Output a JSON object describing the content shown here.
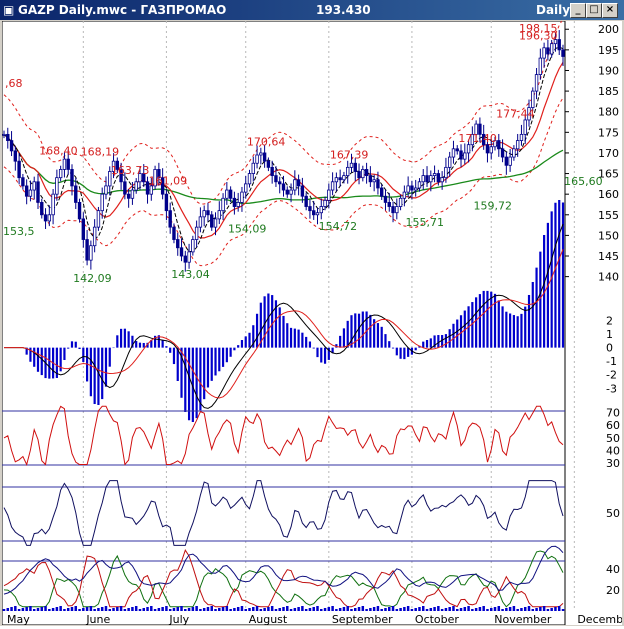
{
  "window": {
    "title": "GAZP Daily.mwc - ГАЗПРОМАО",
    "last_price": "193.430",
    "period": "Daily"
  },
  "colors": {
    "price": "#00008b",
    "ma_red": "#e0201c",
    "ma_green": "#1a8a1a",
    "label_red": "#d42020",
    "label_green": "#1f7a1f",
    "month_line": "#b8b8b8",
    "ref_line": "#3030a0"
  },
  "chart_data": [
    {
      "type": "candlestick",
      "title": "GAZP Daily",
      "ylim": [
        137,
        202
      ],
      "y_ticks": [
        "200",
        "195",
        "190",
        "185",
        "180",
        "175",
        "170",
        "165",
        "160",
        "155",
        "150",
        "145",
        "140"
      ],
      "x_months": [
        "May",
        "June",
        "July",
        "August",
        "September",
        "October",
        "November",
        "December"
      ],
      "left_edge_label": ",68",
      "close_series": [
        174.5,
        173,
        170.5,
        168,
        164,
        162,
        159.5,
        161,
        163,
        158,
        155,
        153.5,
        155,
        160,
        164,
        166,
        168.5,
        166,
        162,
        158,
        154,
        149,
        144,
        147.5,
        152,
        156,
        160,
        162,
        165.5,
        168,
        166,
        163,
        160,
        159,
        161,
        163,
        165,
        163,
        160,
        162,
        166,
        164,
        160,
        156,
        152,
        149,
        147,
        145,
        143.5,
        146,
        149,
        152,
        154.5,
        156,
        155,
        152,
        154,
        156,
        159,
        161,
        159,
        157,
        158,
        160.5,
        162.5,
        165,
        167.5,
        169.5,
        170,
        168,
        166.5,
        164.5,
        163,
        162.5,
        161,
        160,
        161,
        163.5,
        162,
        159.5,
        157,
        156,
        155,
        155.5,
        157,
        158.5,
        161,
        163,
        164,
        163.5,
        164.5,
        166.5,
        167.5,
        165.5,
        164,
        166,
        164.5,
        163,
        163.5,
        161.5,
        159.5,
        158,
        157,
        155.5,
        157,
        159,
        160.5,
        162,
        161,
        161.5,
        163,
        164.5,
        163,
        164.5,
        165,
        163,
        164,
        166.5,
        169,
        171,
        170.5,
        168.5,
        170,
        172,
        174.5,
        177,
        174.5,
        172,
        170,
        171.5,
        173,
        171,
        169,
        167,
        169,
        171,
        173,
        174.5,
        178,
        181,
        185,
        189,
        193,
        195.5,
        194,
        196.5,
        197.5,
        195,
        193.4
      ],
      "high_labels": [
        {
          "v": "168,40",
          "x": 13,
          "y": 168.4
        },
        {
          "v": "168,19",
          "x": 24,
          "y": 168.19
        },
        {
          "v": "163,73",
          "x": 32,
          "y": 163.73
        },
        {
          "v": "161,09",
          "x": 42,
          "y": 161.09
        },
        {
          "v": "170,64",
          "x": 68,
          "y": 170.64
        },
        {
          "v": "167,39",
          "x": 90,
          "y": 167.39
        },
        {
          "v": "171,40",
          "x": 124,
          "y": 171.4
        },
        {
          "v": "177,44",
          "x": 134,
          "y": 177.44
        },
        {
          "v": "196,30",
          "x": 155,
          "y": 196.3
        },
        {
          "v": "198,15",
          "x": 162,
          "y": 198.15
        }
      ],
      "low_labels": [
        {
          "v": "153,5",
          "x": 1,
          "y": 153.5
        },
        {
          "v": "142,09",
          "x": 22,
          "y": 142.09
        },
        {
          "v": "143,04",
          "x": 48,
          "y": 143.04
        },
        {
          "v": "154,09",
          "x": 63,
          "y": 154.09
        },
        {
          "v": "154,72",
          "x": 87,
          "y": 154.72
        },
        {
          "v": "155,71",
          "x": 110,
          "y": 155.71
        },
        {
          "v": "159,72",
          "x": 128,
          "y": 159.72
        },
        {
          "v": "165,60",
          "x": 152,
          "y": 165.6
        }
      ]
    },
    {
      "type": "bar",
      "name": "oscillator",
      "ylim": [
        -3.2,
        3.0
      ],
      "y_ticks": [
        "2",
        "1",
        "0",
        "-1",
        "-2",
        "-3"
      ]
    },
    {
      "type": "line",
      "name": "rsi",
      "ylim": [
        27,
        76
      ],
      "y_ticks": [
        "70",
        "60",
        "50",
        "40",
        "30"
      ],
      "levels": [
        70,
        30
      ]
    },
    {
      "type": "line",
      "name": "stochastic",
      "ylim": [
        10,
        90
      ],
      "y_ticks": [
        "50"
      ],
      "levels": [
        80,
        20
      ]
    },
    {
      "type": "line",
      "name": "dmi",
      "ylim": [
        0,
        55
      ],
      "y_ticks": [
        "40",
        "20"
      ]
    }
  ]
}
